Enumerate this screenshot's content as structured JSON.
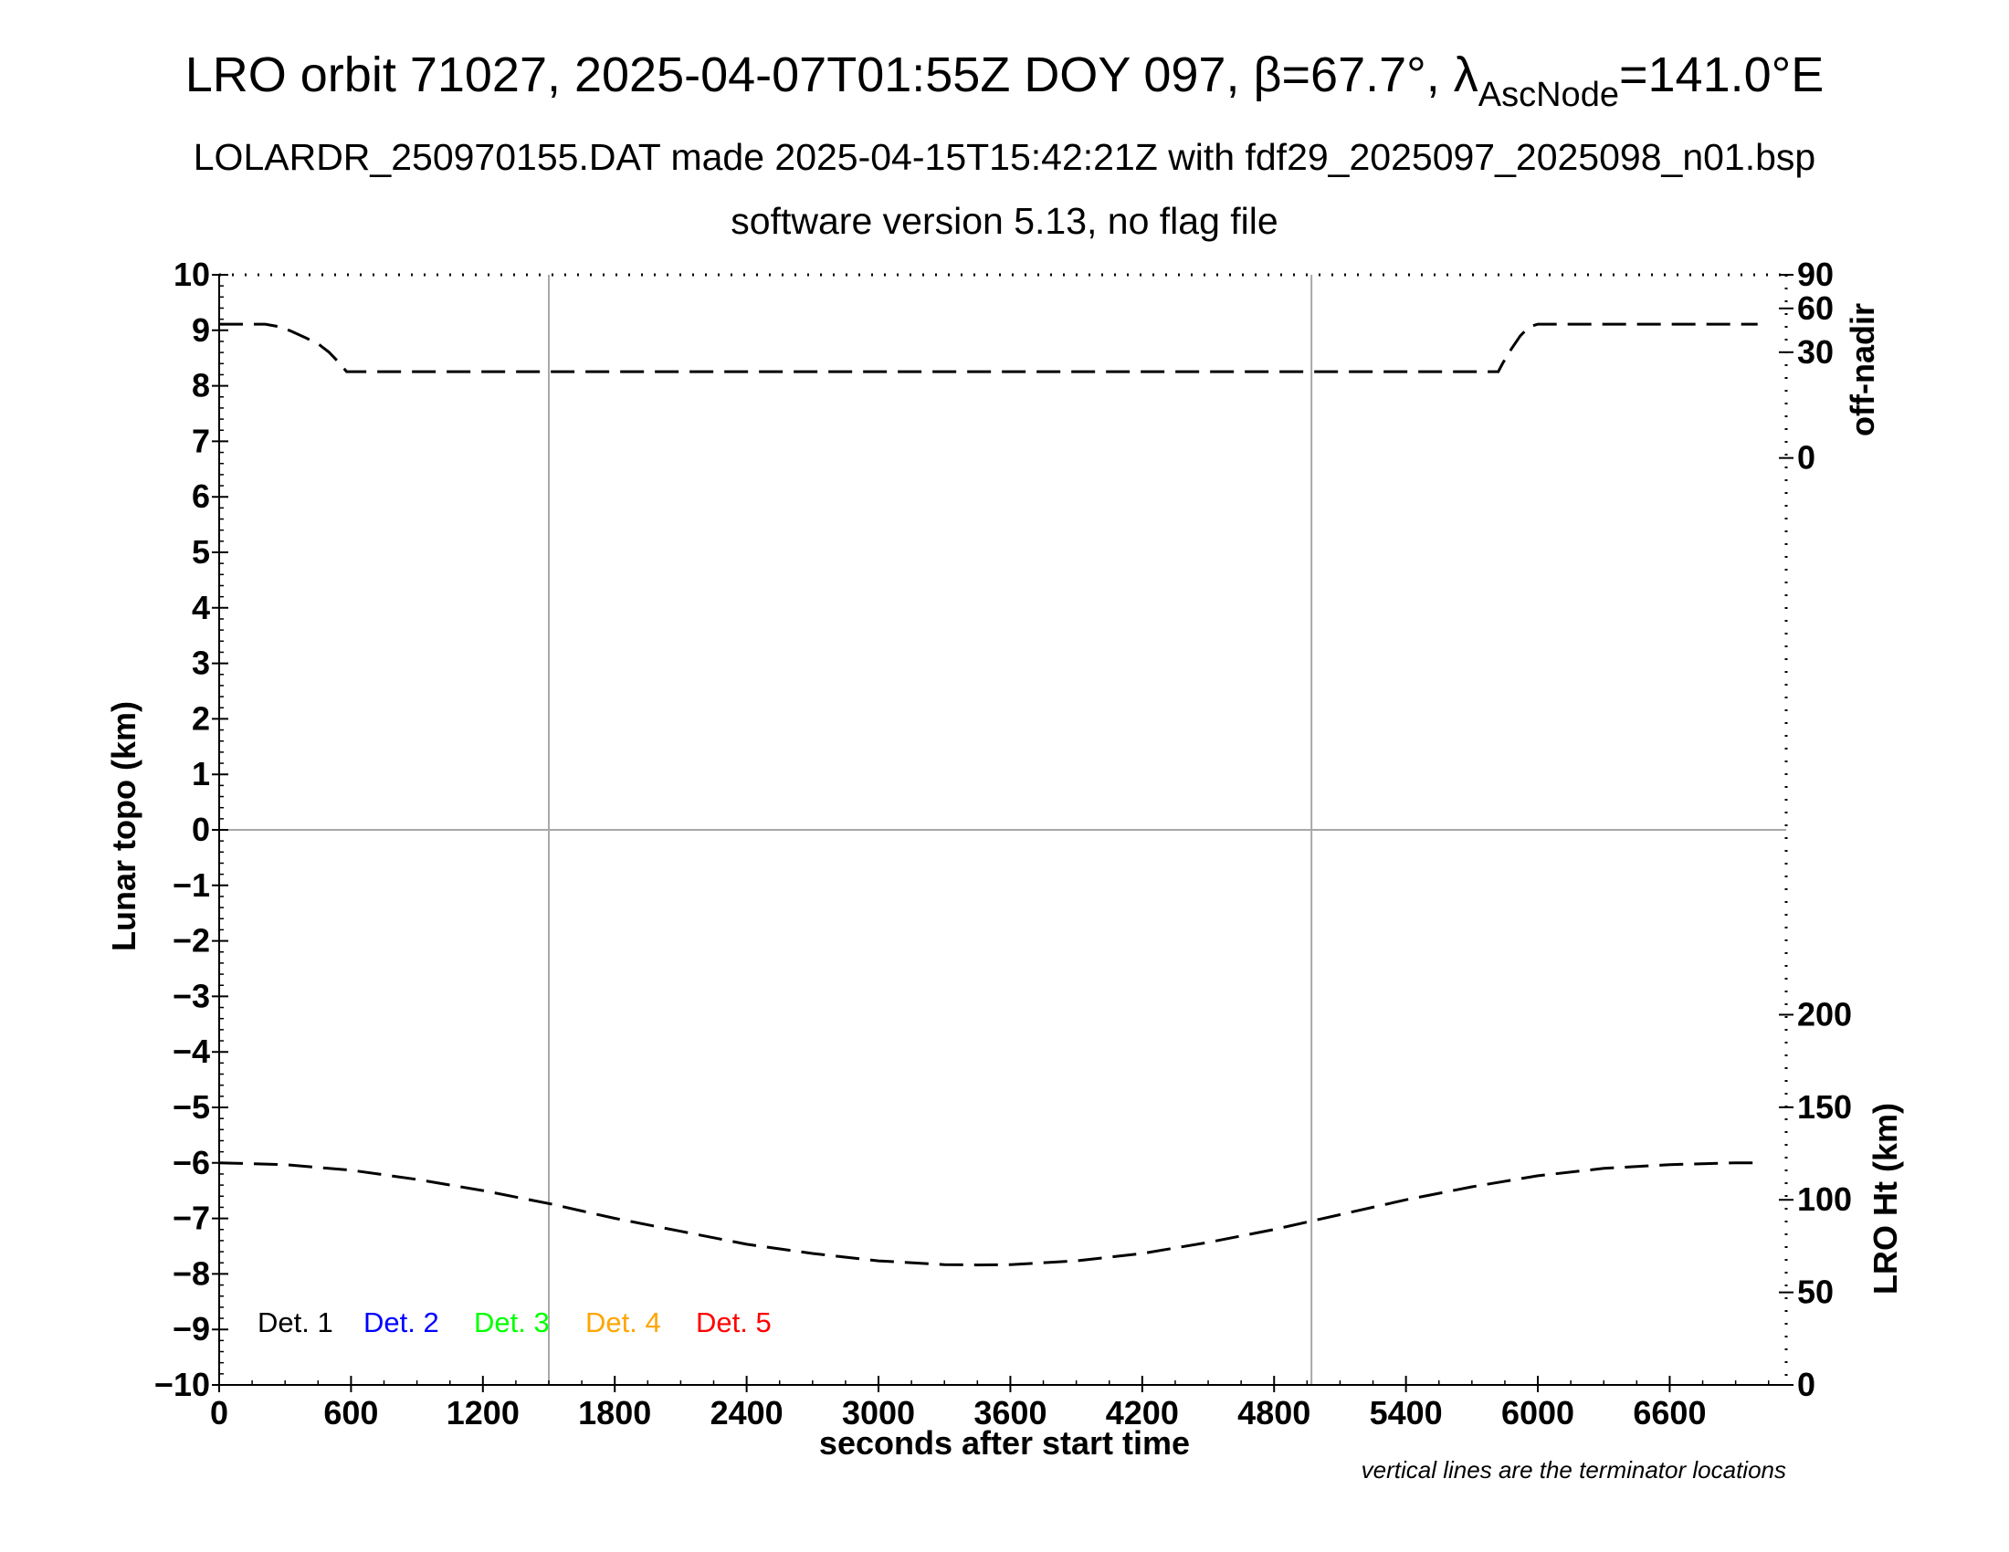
{
  "title": {
    "part1": "LRO orbit 71027, 2025-04-07T01:55Z DOY 097, β=67.7°, λ",
    "subscript": "AscNode",
    "part2": "=141.0°E"
  },
  "subtitle1": "LOLARDR_250970155.DAT made 2025-04-15T15:42:21Z with fdf29_2025097_2025098_n01.bsp",
  "subtitle2": "software version 5.13, no flag file",
  "footnote": "vertical lines are the terminator locations",
  "chart_data": {
    "type": "line",
    "xlabel": "seconds after start time",
    "ylabel": "Lunar topo (km)",
    "xlim": [
      0,
      7130
    ],
    "ylim": [
      -10,
      10
    ],
    "x_ticks": [
      0,
      600,
      1200,
      1800,
      2400,
      3000,
      3600,
      4200,
      4800,
      5400,
      6000,
      6600
    ],
    "y_ticks": [
      10,
      9,
      8,
      7,
      6,
      5,
      4,
      3,
      2,
      1,
      0,
      -1,
      -2,
      -3,
      -4,
      -5,
      -6,
      -7,
      -8,
      -9,
      -10
    ],
    "y_tick_labels": [
      "10",
      "9",
      "8",
      "7",
      "6",
      "5",
      "4",
      "3",
      "2",
      "1",
      "0",
      "−1",
      "−2",
      "−3",
      "−4",
      "−5",
      "−6",
      "−7",
      "−8",
      "−9",
      "−10"
    ],
    "terminator_lines_x": [
      1500,
      4970
    ],
    "zero_line_y": 0,
    "right_axis_offnadir": {
      "label": "off-nadir",
      "ticks": [
        90,
        60,
        30,
        0
      ],
      "range": [
        0,
        90
      ],
      "series": [
        {
          "x": [
            0,
            210,
            280,
            330,
            390,
            450,
            500,
            540,
            580,
            600,
            1200,
            1800,
            2400,
            3000,
            3600,
            4200,
            4800,
            5400,
            5820,
            5840,
            5880,
            5920,
            5960,
            6000,
            6400,
            6800,
            7000
          ],
          "y": [
            48,
            48,
            46,
            43,
            39,
            35,
            30,
            25,
            20,
            20,
            20,
            20,
            20,
            20,
            20,
            20,
            20,
            20,
            20,
            24,
            32,
            40,
            46,
            48,
            48,
            48,
            48
          ]
        }
      ]
    },
    "right_axis_height": {
      "label": "LRO Ht (km)",
      "ticks": [
        200,
        150,
        100,
        50,
        0
      ],
      "range": [
        0,
        200
      ],
      "series": [
        {
          "x": [
            0,
            300,
            600,
            900,
            1200,
            1500,
            1800,
            2100,
            2400,
            2700,
            3000,
            3300,
            3450,
            3600,
            3900,
            4200,
            4500,
            4800,
            5100,
            5400,
            5700,
            6000,
            6300,
            6600,
            6900,
            7000
          ],
          "y": [
            120,
            119,
            116,
            111,
            105,
            98,
            90,
            83,
            76,
            71,
            67,
            65,
            64.8,
            65,
            67,
            71,
            77,
            84,
            92,
            100,
            107,
            113,
            117,
            119,
            120,
            120
          ]
        }
      ]
    },
    "legend": [
      {
        "label": "Det. 1",
        "color": "#000000"
      },
      {
        "label": "Det. 2",
        "color": "#0000ff"
      },
      {
        "label": "Det. 3",
        "color": "#00ff00"
      },
      {
        "label": "Det. 4",
        "color": "#ffa500"
      },
      {
        "label": "Det. 5",
        "color": "#ff0000"
      }
    ],
    "grid": false,
    "legend_position": "bottom-left"
  }
}
